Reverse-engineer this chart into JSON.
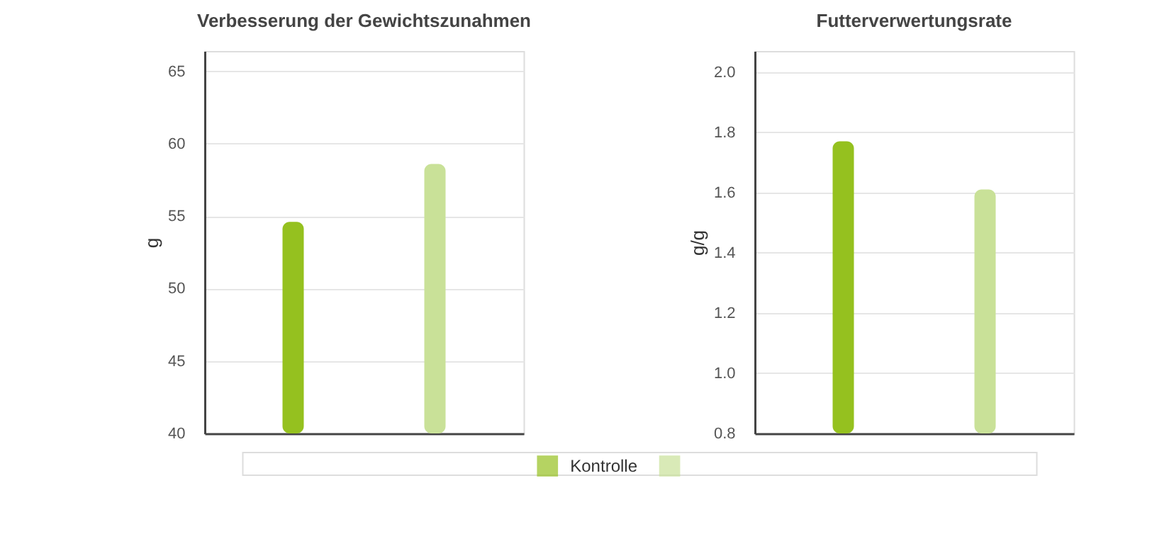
{
  "chart_data": [
    {
      "type": "bar",
      "title": "Verbesserung der Gewichtszunahmen",
      "ylabel": "g",
      "categories": [
        null
      ],
      "series": [
        {
          "name": "Kontrolle",
          "color": "#95c11f",
          "values": [
            54.6
          ]
        },
        {
          "color": "#c9e198",
          "values": [
            58.6
          ]
        }
      ],
      "ylim": [
        40,
        66.4
      ],
      "yticks": [
        40,
        45,
        50,
        55,
        60,
        65
      ],
      "grid": "y",
      "tick_labels": "y",
      "legend": "bottom"
    },
    {
      "type": "bar",
      "title": "Futterverwertungsrate",
      "ylabel": "g/g",
      "categories": [
        null
      ],
      "series": [
        {
          "name": "Kontrolle",
          "color": "#95c11f",
          "values": [
            1.77
          ]
        },
        {
          "color": "#c9e198",
          "values": [
            1.61
          ]
        }
      ],
      "ylim": [
        0.8,
        2.07
      ],
      "yticks": [
        0.8,
        {
          "value": 1,
          "label": "1.0"
        },
        1.2,
        1.4,
        1.6,
        1.8,
        {
          "value": 2,
          "label": "2.0"
        }
      ],
      "grid": "y",
      "tick_labels": "y",
      "legend": "bottom"
    }
  ]
}
